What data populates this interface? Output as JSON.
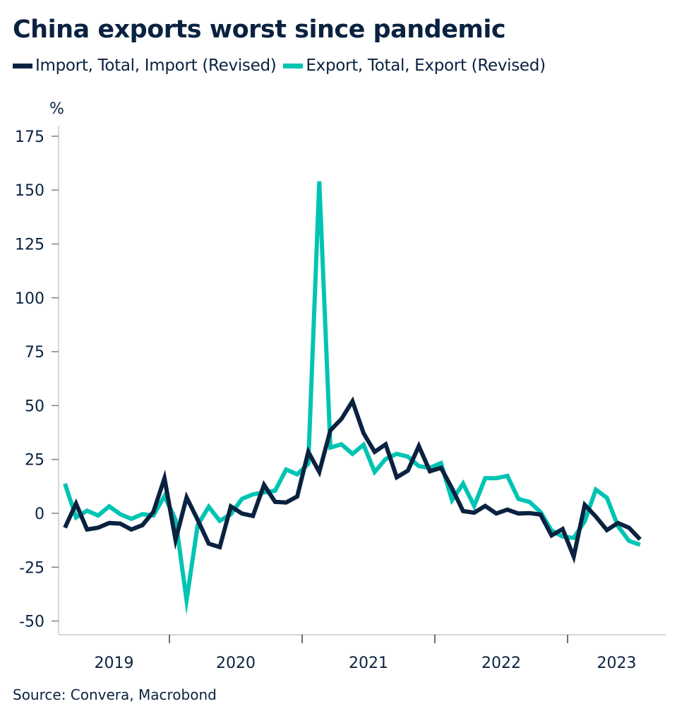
{
  "title": "China exports worst since pandemic",
  "unit_label": "%",
  "source": "Source: Convera, Macrobond",
  "legend": [
    {
      "label": "Import, Total, Import (Revised)",
      "color": "#0a2240"
    },
    {
      "label": "Export, Total, Export (Revised)",
      "color": "#00c4b3"
    }
  ],
  "chart_data": {
    "type": "line",
    "title": "China exports worst since pandemic",
    "xlabel": "",
    "ylabel": "%",
    "ylim": [
      -55,
      180
    ],
    "y_ticks": [
      -50,
      -25,
      0,
      25,
      50,
      75,
      100,
      125,
      150,
      175
    ],
    "x_tick_labels": [
      "2019",
      "2020",
      "2021",
      "2022",
      "2023"
    ],
    "x_start": "2019-03",
    "frequency": "monthly",
    "grid": false,
    "legend_position": "top-left",
    "x": [
      "2019-03",
      "2019-04",
      "2019-05",
      "2019-06",
      "2019-07",
      "2019-08",
      "2019-09",
      "2019-10",
      "2019-11",
      "2019-12",
      "2020-01",
      "2020-02",
      "2020-03",
      "2020-04",
      "2020-05",
      "2020-06",
      "2020-07",
      "2020-08",
      "2020-09",
      "2020-10",
      "2020-11",
      "2020-12",
      "2021-01",
      "2021-02",
      "2021-03",
      "2021-04",
      "2021-05",
      "2021-06",
      "2021-07",
      "2021-08",
      "2021-09",
      "2021-10",
      "2021-11",
      "2021-12",
      "2022-01",
      "2022-02",
      "2022-03",
      "2022-04",
      "2022-05",
      "2022-06",
      "2022-07",
      "2022-08",
      "2022-09",
      "2022-10",
      "2022-11",
      "2022-12",
      "2023-01",
      "2023-02",
      "2023-03",
      "2023-04",
      "2023-05",
      "2023-06",
      "2023-07"
    ],
    "series": [
      {
        "name": "Import, Total, Import (Revised)",
        "color": "#0a2240",
        "values": [
          -6.7,
          4.5,
          -7.5,
          -6.7,
          -4.5,
          -4.8,
          -7.5,
          -5.5,
          0.7,
          16.3,
          -12.4,
          7.4,
          -3.0,
          -14.1,
          -15.7,
          3.2,
          -0.1,
          -1.2,
          13.2,
          5.3,
          5.0,
          7.8,
          28.5,
          19.2,
          38.5,
          43.8,
          52.0,
          37.2,
          28.5,
          32.0,
          16.7,
          19.8,
          31.2,
          19.5,
          21.1,
          11.6,
          1.0,
          0.3,
          3.4,
          -0.1,
          1.7,
          -0.1,
          0.1,
          -0.6,
          -10.3,
          -7.3,
          -20.1,
          3.9,
          -1.5,
          -7.8,
          -4.5,
          -6.7,
          -12.1
        ]
      },
      {
        "name": "Export, Total, Export (Revised)",
        "color": "#00c4b3",
        "values": [
          13.8,
          -1.9,
          1.2,
          -1.0,
          3.2,
          -0.4,
          -2.6,
          -0.4,
          -1.0,
          8.0,
          -3.0,
          -40.3,
          -5.5,
          3.0,
          -3.5,
          -0.4,
          6.7,
          8.8,
          9.7,
          10.5,
          20.3,
          18.1,
          23.0,
          154.1,
          30.5,
          32.0,
          27.6,
          31.8,
          19.2,
          25.2,
          27.6,
          26.3,
          21.9,
          21.1,
          23.3,
          6.1,
          13.8,
          3.4,
          16.3,
          16.3,
          17.4,
          6.7,
          5.3,
          0.6,
          -8.0,
          -10.8,
          -11.4,
          -3.7,
          11.0,
          7.2,
          -5.9,
          -12.8,
          -14.6
        ]
      }
    ]
  }
}
